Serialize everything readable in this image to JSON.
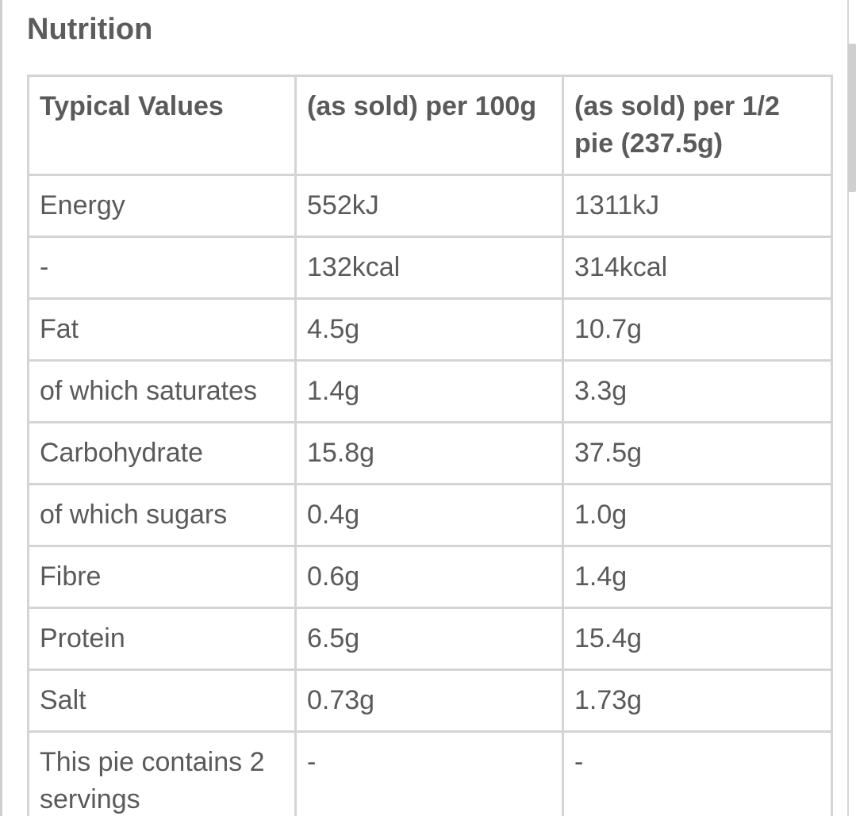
{
  "section": {
    "title": "Nutrition"
  },
  "table": {
    "headers": [
      "Typical Values",
      "(as sold) per 100g",
      "(as sold) per 1/2 pie (237.5g)"
    ],
    "rows": [
      [
        "Energy",
        "552kJ",
        "1311kJ"
      ],
      [
        "-",
        "132kcal",
        "314kcal"
      ],
      [
        "Fat",
        "4.5g",
        "10.7g"
      ],
      [
        "of which saturates",
        "1.4g",
        "3.3g"
      ],
      [
        "Carbohydrate",
        "15.8g",
        "37.5g"
      ],
      [
        "of which sugars",
        "0.4g",
        "1.0g"
      ],
      [
        "Fibre",
        "0.6g",
        "1.4g"
      ],
      [
        "Protein",
        "6.5g",
        "15.4g"
      ],
      [
        "Salt",
        "0.73g",
        "1.73g"
      ],
      [
        "This pie contains 2 servings",
        "-",
        "-"
      ]
    ]
  },
  "colors": {
    "text": "#5a5a5a",
    "border": "#d4d4d4",
    "scrollbar": "#cfcfcf",
    "background": "#ffffff"
  }
}
